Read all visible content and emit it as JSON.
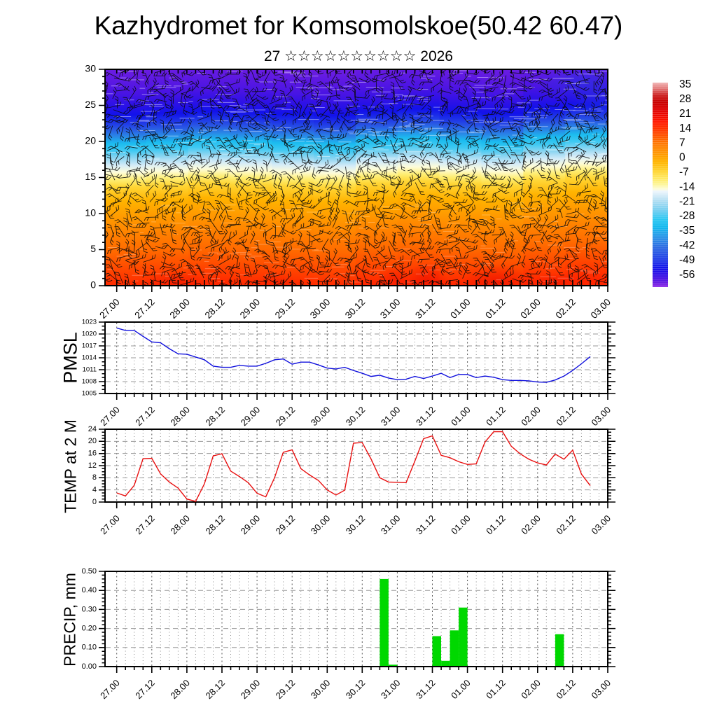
{
  "title": "Kazhydromet for Komsomolskoe(50.42 60.47)",
  "subtitle": "27 ☆☆☆☆☆☆☆☆☆☆ 2026",
  "colors": {
    "background": "#ffffff",
    "axis": "#000000",
    "grid_minor": "#888888",
    "grid_major": "#555555",
    "pmsl_line": "#1010dd",
    "temp_line": "#e81010",
    "precip_bar": "#00d800"
  },
  "x_axis": {
    "tick_labels": [
      "27.00",
      "27.12",
      "28.00",
      "28.12",
      "29.00",
      "29.12",
      "30.00",
      "30.12",
      "31.00",
      "31.12",
      "01.00",
      "01.12",
      "02.00",
      "02.12",
      "03.00"
    ],
    "major_step_hours": 12,
    "minor_step_hours": 3,
    "hours_span": 168
  },
  "chart_data": [
    {
      "id": "cross_section",
      "type": "heatmap",
      "description": "Temperature height-time cross-section with wind barbs",
      "y_ticks": [
        0,
        5,
        10,
        15,
        20,
        25,
        30
      ],
      "y_range": [
        0,
        30
      ],
      "x_tick_labels": [
        "27.00",
        "27.12",
        "28.00",
        "28.12",
        "29.00",
        "29.12",
        "30.00",
        "30.12",
        "31.00",
        "31.12",
        "01.00",
        "01.12",
        "02.00",
        "02.12",
        "03.00"
      ],
      "approx_profile_height_temp": [
        [
          30,
          -57
        ],
        [
          27,
          -55
        ],
        [
          25,
          -52
        ],
        [
          24,
          -50
        ],
        [
          23,
          -47
        ],
        [
          22,
          -43
        ],
        [
          21,
          -37
        ],
        [
          20,
          -30
        ],
        [
          19,
          -26
        ],
        [
          18,
          -21
        ],
        [
          17,
          -16
        ],
        [
          16,
          -13
        ],
        [
          15,
          -9
        ],
        [
          14,
          -5
        ],
        [
          12,
          0
        ],
        [
          10,
          3
        ],
        [
          8,
          6
        ],
        [
          5,
          10
        ],
        [
          2,
          14
        ],
        [
          0,
          17
        ]
      ],
      "colorbar": {
        "tick_labels": [
          35,
          28,
          21,
          14,
          7,
          0,
          -7,
          -14,
          -21,
          -28,
          -35,
          -42,
          -49,
          -56
        ],
        "top_value": 37,
        "bottom_value": -59,
        "stops": [
          {
            "v": 37,
            "c": "#f2b4b4"
          },
          {
            "v": 34,
            "c": "#e07070"
          },
          {
            "v": 31,
            "c": "#cc2222"
          },
          {
            "v": 28,
            "c": "#c80000"
          },
          {
            "v": 24,
            "c": "#e00000"
          },
          {
            "v": 19,
            "c": "#ff1500"
          },
          {
            "v": 14,
            "c": "#ff4000"
          },
          {
            "v": 9,
            "c": "#ff7300"
          },
          {
            "v": 4,
            "c": "#ff9500"
          },
          {
            "v": 0,
            "c": "#ffb300"
          },
          {
            "v": -4,
            "c": "#ffd028"
          },
          {
            "v": -8,
            "c": "#ffe960"
          },
          {
            "v": -11,
            "c": "#fdf7a0"
          },
          {
            "v": -13,
            "c": "#fdfcda"
          },
          {
            "v": -14,
            "c": "#eef6fc"
          },
          {
            "v": -16,
            "c": "#d4ebf8"
          },
          {
            "v": -19,
            "c": "#aadcf2"
          },
          {
            "v": -23,
            "c": "#70cdf0"
          },
          {
            "v": -27,
            "c": "#2ec8f2"
          },
          {
            "v": -31,
            "c": "#14b8ee"
          },
          {
            "v": -35,
            "c": "#2597e8"
          },
          {
            "v": -40,
            "c": "#2f6ee2"
          },
          {
            "v": -45,
            "c": "#2547e6"
          },
          {
            "v": -50,
            "c": "#1212ea"
          },
          {
            "v": -54,
            "c": "#3a10e4"
          },
          {
            "v": -57,
            "c": "#6a1ce2"
          },
          {
            "v": -59,
            "c": "#8f2ce8"
          }
        ]
      }
    },
    {
      "id": "pmsl",
      "type": "line",
      "ylabel": "PMSL",
      "y_ticks": [
        1005,
        1008,
        1011,
        1014,
        1017,
        1020,
        1023
      ],
      "y_range": [
        1005,
        1023
      ],
      "y_minor_step": 1,
      "t_start": 0,
      "t_step": 3,
      "values": [
        1021.5,
        1020.9,
        1020.9,
        1019.4,
        1018.0,
        1017.8,
        1016.3,
        1015.0,
        1014.9,
        1014.2,
        1013.5,
        1011.9,
        1011.6,
        1011.6,
        1012.1,
        1011.9,
        1011.9,
        1012.6,
        1013.5,
        1013.7,
        1012.4,
        1012.9,
        1012.9,
        1012.2,
        1011.4,
        1011.2,
        1011.6,
        1010.8,
        1010.1,
        1009.3,
        1009.6,
        1008.9,
        1008.5,
        1008.6,
        1009.3,
        1008.8,
        1009.4,
        1010.1,
        1009.0,
        1009.8,
        1009.8,
        1009.0,
        1009.4,
        1009.1,
        1008.5,
        1008.3,
        1008.3,
        1008.2,
        1007.9,
        1007.8,
        1008.4,
        1009.4,
        1010.8,
        1012.5,
        1014.3
      ]
    },
    {
      "id": "temp2m",
      "type": "line",
      "ylabel": "TEMP at 2 M",
      "y_ticks": [
        0,
        4,
        8,
        12,
        16,
        20,
        24
      ],
      "y_range": [
        0,
        24
      ],
      "y_minor_step": 1,
      "t_start": 0,
      "t_step": 3,
      "values": [
        3.0,
        2.0,
        5.5,
        14.3,
        14.4,
        9.3,
        6.6,
        4.6,
        1.0,
        0.2,
        6.0,
        15.2,
        15.9,
        10.2,
        8.4,
        6.4,
        2.9,
        1.7,
        8.0,
        16.4,
        17.2,
        11.0,
        8.9,
        7.1,
        4.0,
        2.3,
        3.9,
        19.4,
        19.6,
        14.2,
        8.0,
        6.6,
        6.5,
        6.4,
        13.5,
        20.9,
        21.8,
        15.4,
        14.6,
        13.3,
        12.4,
        12.6,
        19.8,
        23.2,
        23.2,
        18.4,
        15.9,
        14.1,
        12.9,
        12.2,
        15.8,
        14.1,
        17.1,
        9.2,
        5.4
      ]
    },
    {
      "id": "precip",
      "type": "bar",
      "ylabel": "PRECIP, mm",
      "y_tick_labels": [
        "0.00",
        "0.10",
        "0.20",
        "0.30",
        "0.40",
        "0.50"
      ],
      "y_range": [
        0,
        0.5
      ],
      "y_minor_step": 0.02,
      "bar_width_hours": 3,
      "bars": [
        {
          "t": 90,
          "v": 0.46
        },
        {
          "t": 93,
          "v": 0.01
        },
        {
          "t": 108,
          "v": 0.16
        },
        {
          "t": 111,
          "v": 0.03
        },
        {
          "t": 114,
          "v": 0.19
        },
        {
          "t": 117,
          "v": 0.31
        },
        {
          "t": 150,
          "v": 0.17
        }
      ]
    }
  ]
}
